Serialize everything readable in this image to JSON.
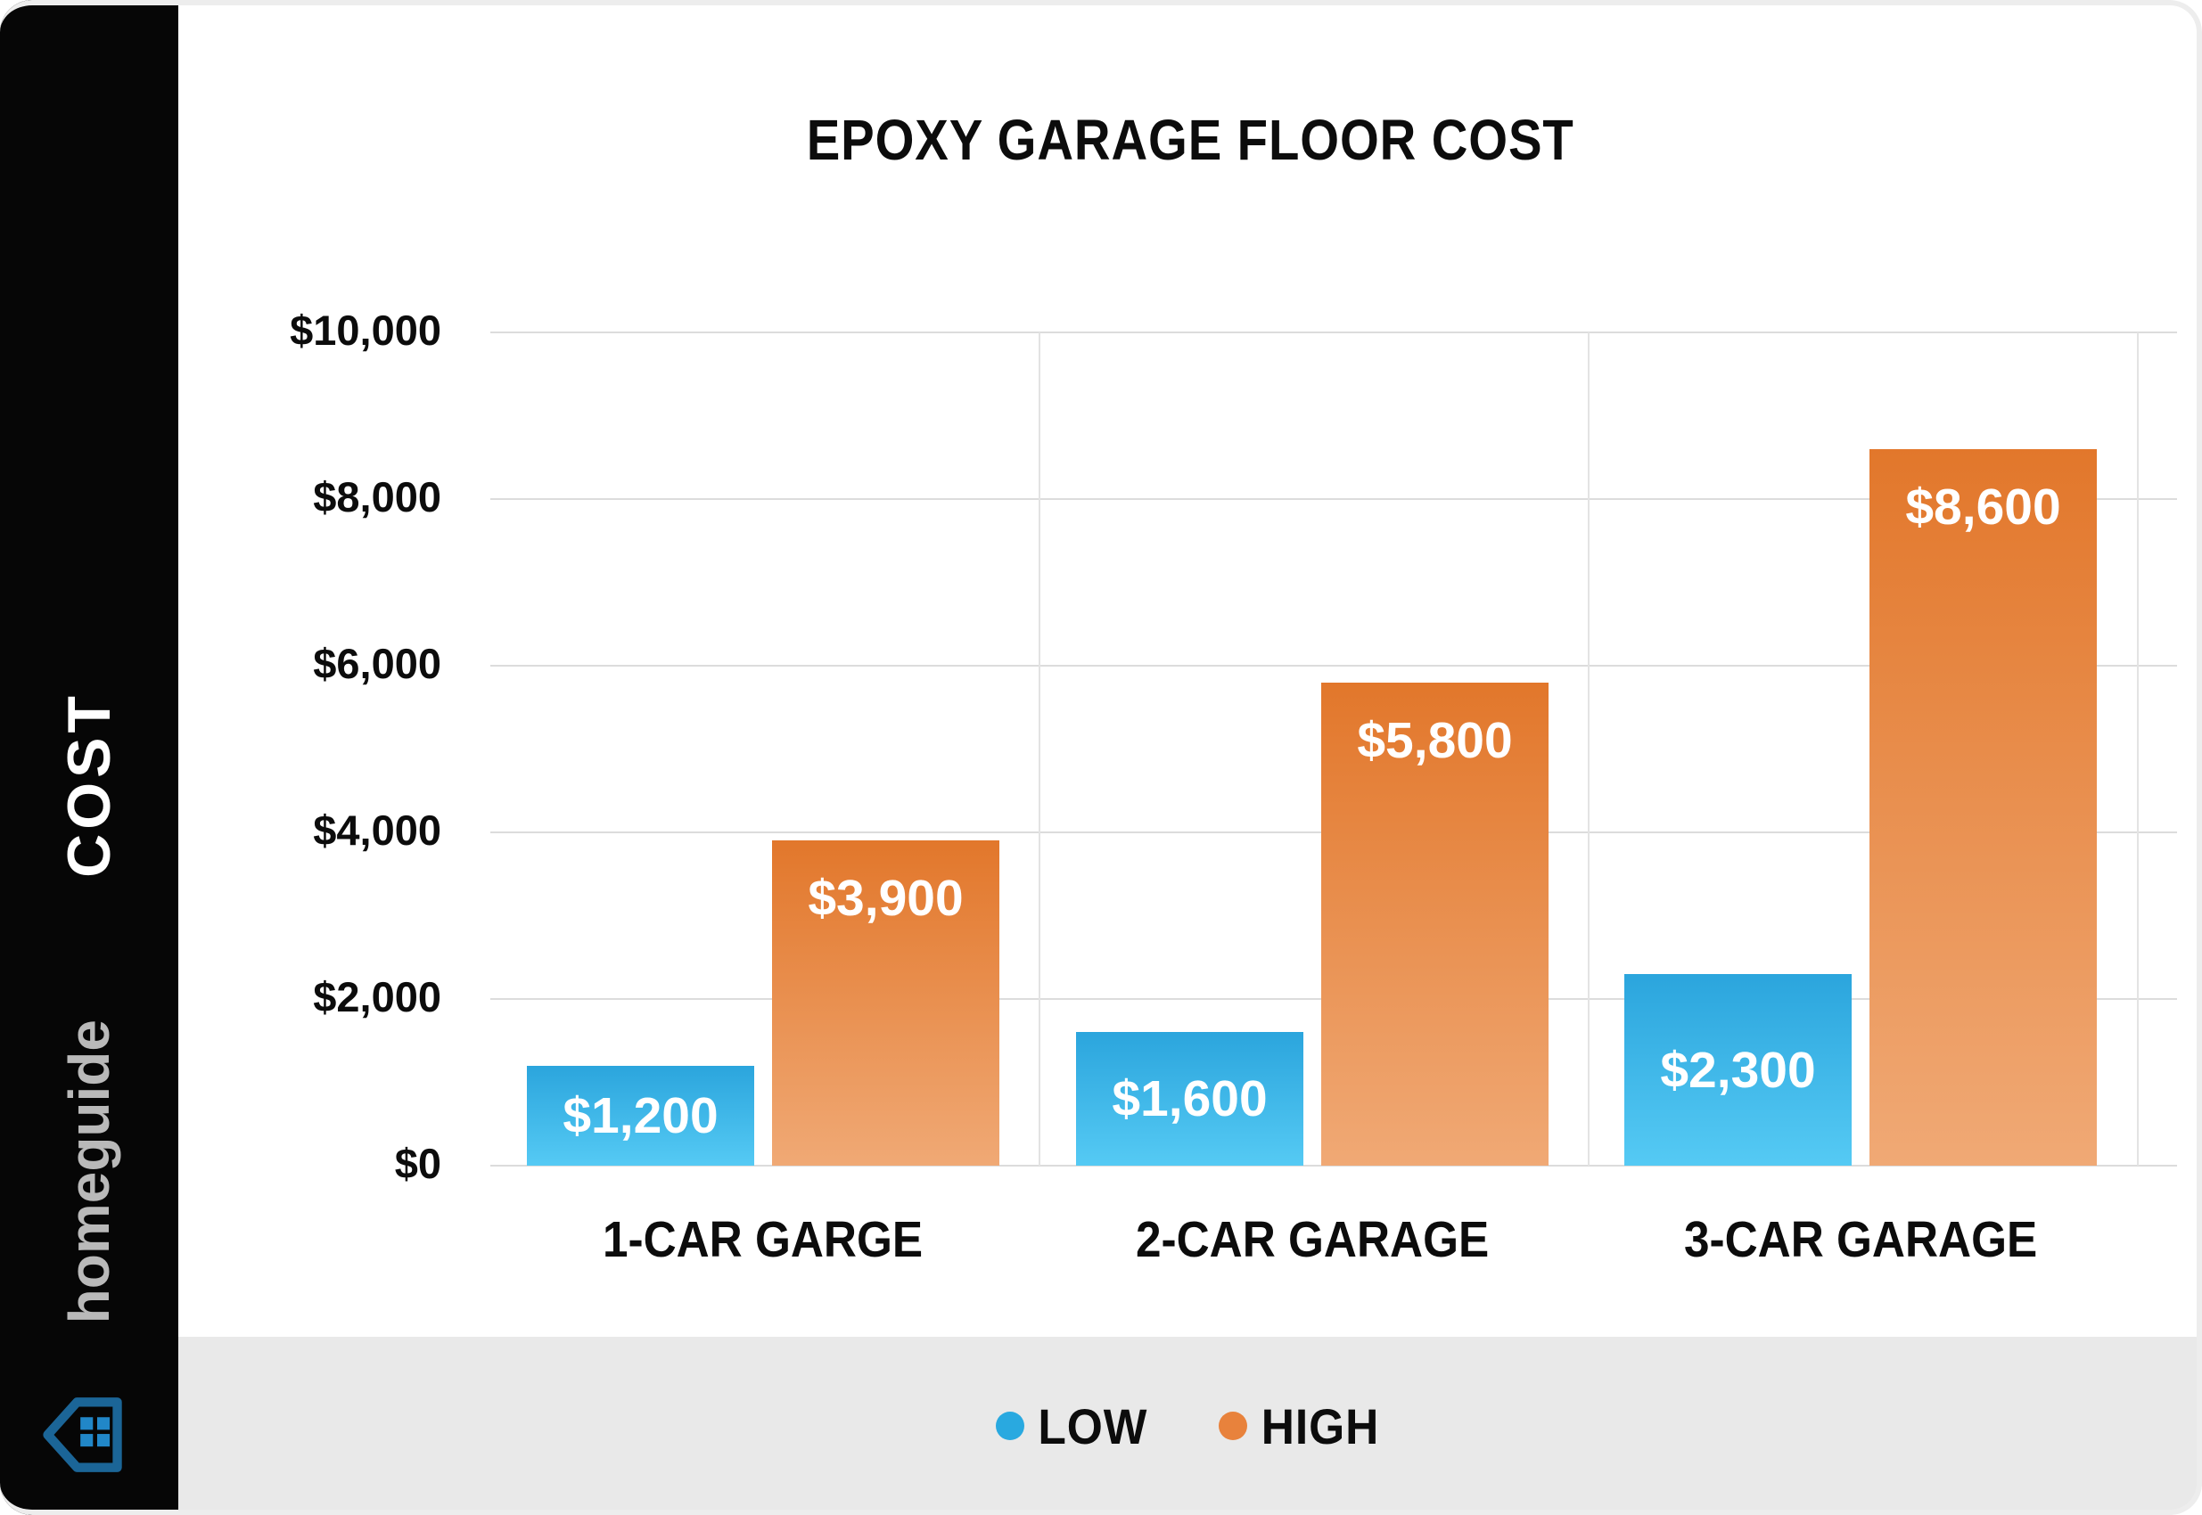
{
  "sidebar": {
    "cost_label": "COST",
    "brand": "homeguide",
    "house_icon": {
      "outline_color": "#1b6597",
      "window_color": "#2187c8"
    }
  },
  "chart_data": {
    "type": "bar",
    "title": "EPOXY GARAGE FLOOR COST",
    "categories": [
      "1-CAR GARGE",
      "2-CAR GARAGE",
      "3-CAR GARAGE"
    ],
    "series": [
      {
        "name": "LOW",
        "color": "#29a9e0",
        "values": [
          1200,
          1600,
          2300
        ],
        "labels": [
          "$1,200",
          "$1,600",
          "$2,300"
        ]
      },
      {
        "name": "HIGH",
        "color": "#e8823c",
        "values": [
          3900,
          5800,
          8600
        ],
        "labels": [
          "$3,900",
          "$5,800",
          "$8,600"
        ]
      }
    ],
    "y_axis": {
      "min": 0,
      "max": 10000,
      "step": 2000,
      "ticks": [
        "$0",
        "$2,000",
        "$4,000",
        "$6,000",
        "$8,000",
        "$10,000"
      ]
    },
    "legend": [
      "LOW",
      "HIGH"
    ],
    "legend_position": "bottom",
    "grid": true,
    "ylim": [
      0,
      10000
    ]
  },
  "colors": {
    "low_gradient_top": "#2ba5dd",
    "low_gradient_bottom": "#55caf4",
    "high_gradient_top": "#e2772b",
    "high_gradient_bottom": "#f0a975",
    "gridline": "#dcdcdc",
    "legend_strip": "#e9e9e9",
    "sidebar": "#060606"
  }
}
